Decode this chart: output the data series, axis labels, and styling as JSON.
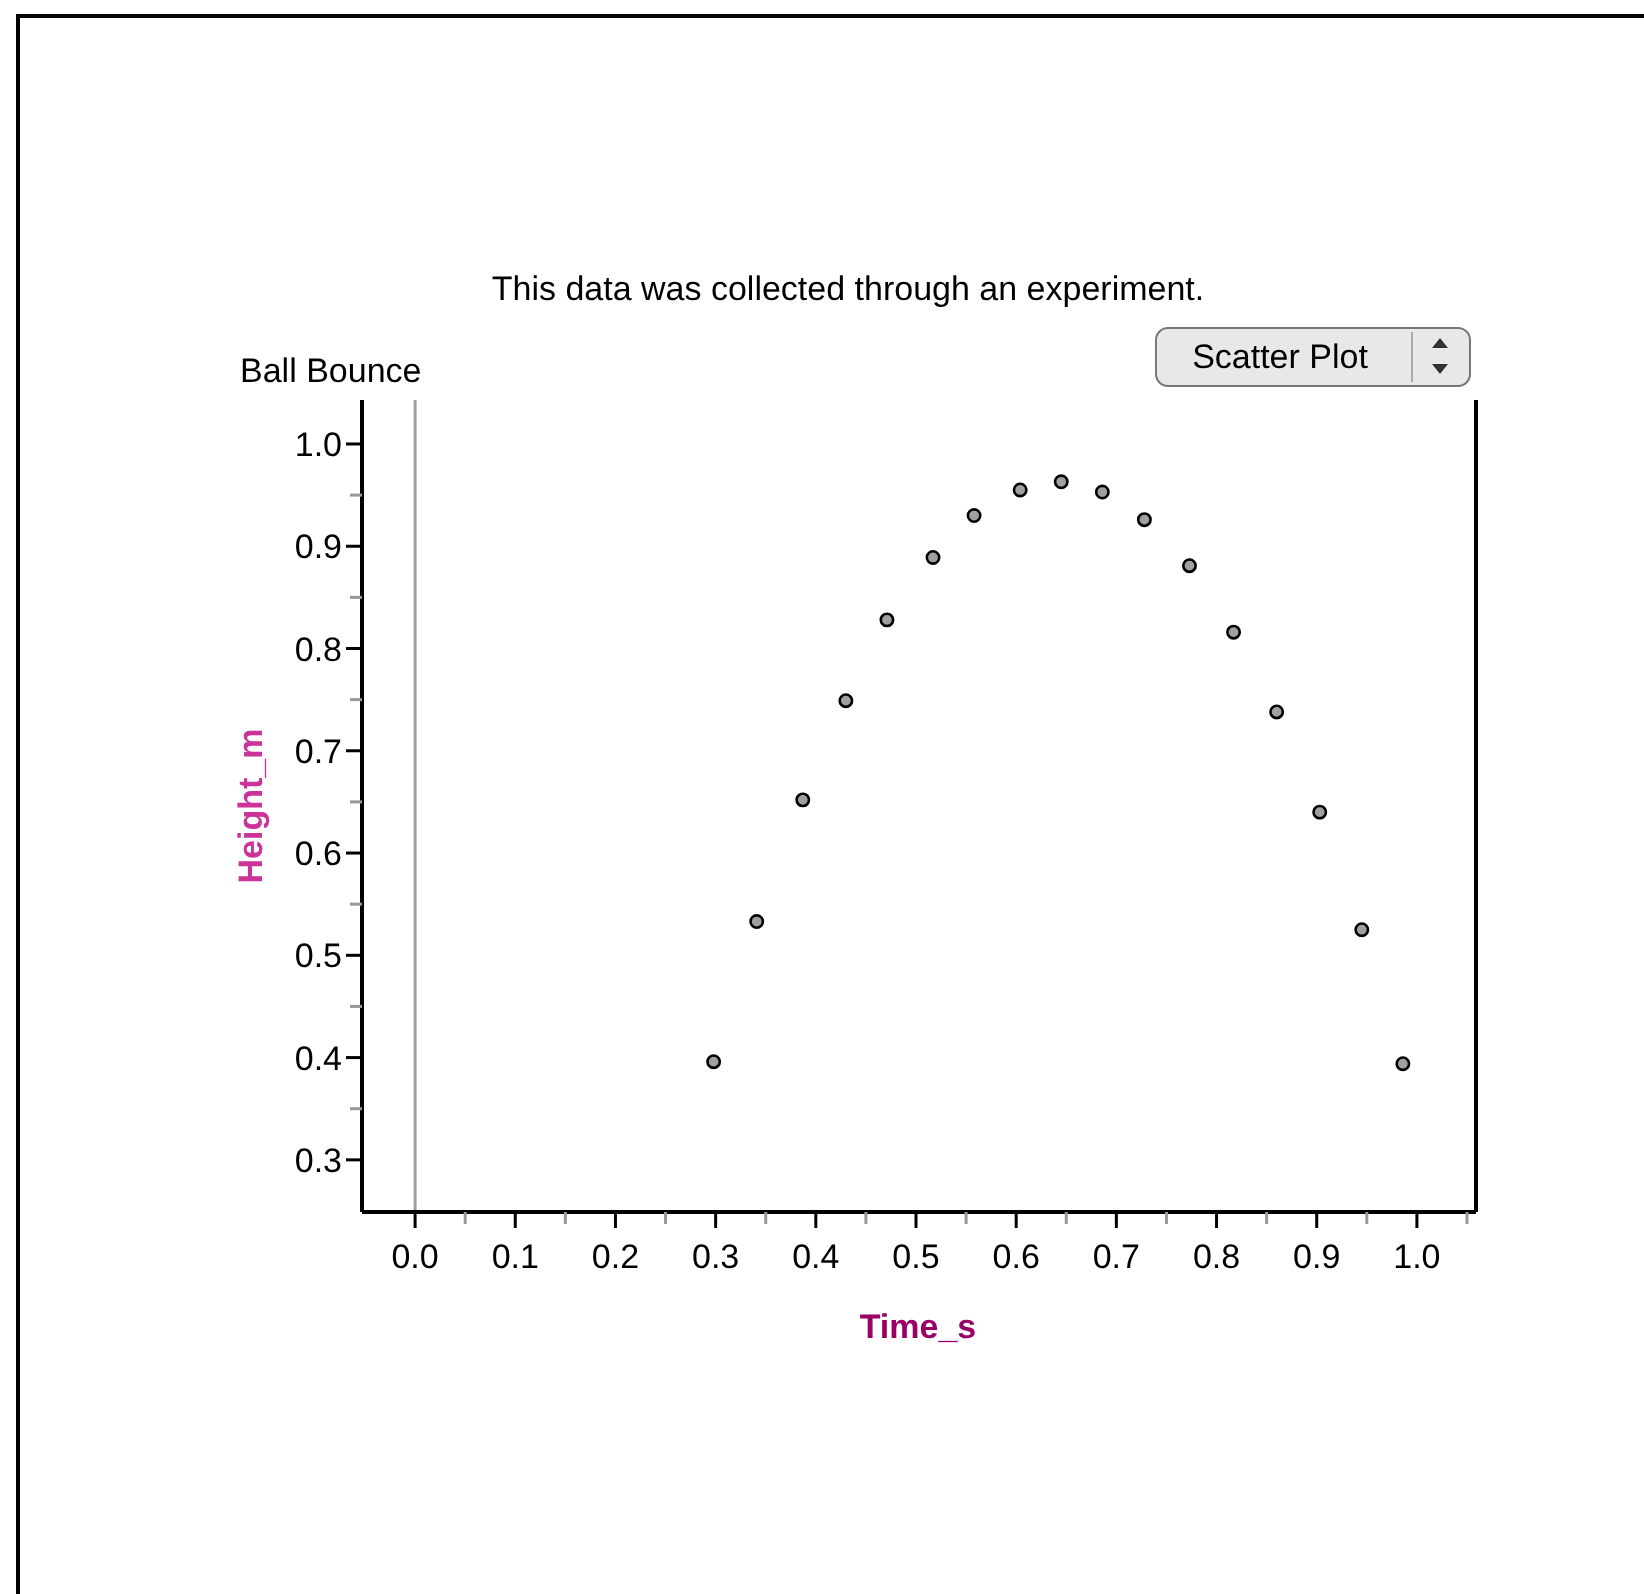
{
  "chart_data": {
    "type": "scatter",
    "title": "This data was collected through an experiment.",
    "subtitle": "Ball Bounce",
    "xlabel": "Time_s",
    "ylabel": "Height_m",
    "annotations": [
      "Scatter Plot"
    ],
    "x": [
      0.298,
      0.341,
      0.387,
      0.43,
      0.471,
      0.517,
      0.558,
      0.604,
      0.645,
      0.686,
      0.728,
      0.773,
      0.817,
      0.86,
      0.903,
      0.945,
      0.986
    ],
    "series": [
      {
        "color": "#a0a0a0",
        "values": [
          0.396,
          0.533,
          0.652,
          0.749,
          0.828,
          0.889,
          0.93,
          0.955,
          0.963,
          0.953,
          0.926,
          0.881,
          0.816,
          0.738,
          0.64,
          0.525,
          0.394
        ]
      }
    ],
    "xlim": [
      -0.053,
      1.059
    ],
    "ylim": [
      0.249,
      1.043
    ],
    "xticks": [
      {
        "value": 0,
        "label": "0.0"
      },
      {
        "value": 0.05,
        "label": null
      },
      {
        "value": 0.1,
        "label": "0.1"
      },
      {
        "value": 0.15,
        "label": null
      },
      {
        "value": 0.2,
        "label": "0.2"
      },
      {
        "value": 0.25,
        "label": null
      },
      {
        "value": 0.3,
        "label": "0.3"
      },
      {
        "value": 0.35,
        "label": null
      },
      {
        "value": 0.4,
        "label": "0.4"
      },
      {
        "value": 0.45,
        "label": null
      },
      {
        "value": 0.5,
        "label": "0.5"
      },
      {
        "value": 0.55,
        "label": null
      },
      {
        "value": 0.6,
        "label": "0.6"
      },
      {
        "value": 0.65,
        "label": null
      },
      {
        "value": 0.7,
        "label": "0.7"
      },
      {
        "value": 0.75,
        "label": null
      },
      {
        "value": 0.8,
        "label": "0.8"
      },
      {
        "value": 0.85,
        "label": null
      },
      {
        "value": 0.9,
        "label": "0.9"
      },
      {
        "value": 0.95,
        "label": null
      },
      {
        "value": 1,
        "label": "1.0"
      },
      {
        "value": 1.05,
        "label": null
      }
    ],
    "yticks": [
      {
        "value": 0.3,
        "label": "0.3"
      },
      {
        "value": 0.35,
        "label": null
      },
      {
        "value": 0.4,
        "label": "0.4"
      },
      {
        "value": 0.45,
        "label": null
      },
      {
        "value": 0.5,
        "label": "0.5"
      },
      {
        "value": 0.55,
        "label": null
      },
      {
        "value": 0.6,
        "label": "0.6"
      },
      {
        "value": 0.65,
        "label": null
      },
      {
        "value": 0.7,
        "label": "0.7"
      },
      {
        "value": 0.75,
        "label": null
      },
      {
        "value": 0.8,
        "label": "0.8"
      },
      {
        "value": 0.85,
        "label": null
      },
      {
        "value": 0.9,
        "label": "0.9"
      },
      {
        "value": 0.95,
        "label": null
      },
      {
        "value": 1,
        "label": "1.0"
      }
    ],
    "ref_lines": [
      {
        "axis": "x",
        "value": 0,
        "color": "#a0a0a0"
      }
    ],
    "marker": "circle"
  }
}
